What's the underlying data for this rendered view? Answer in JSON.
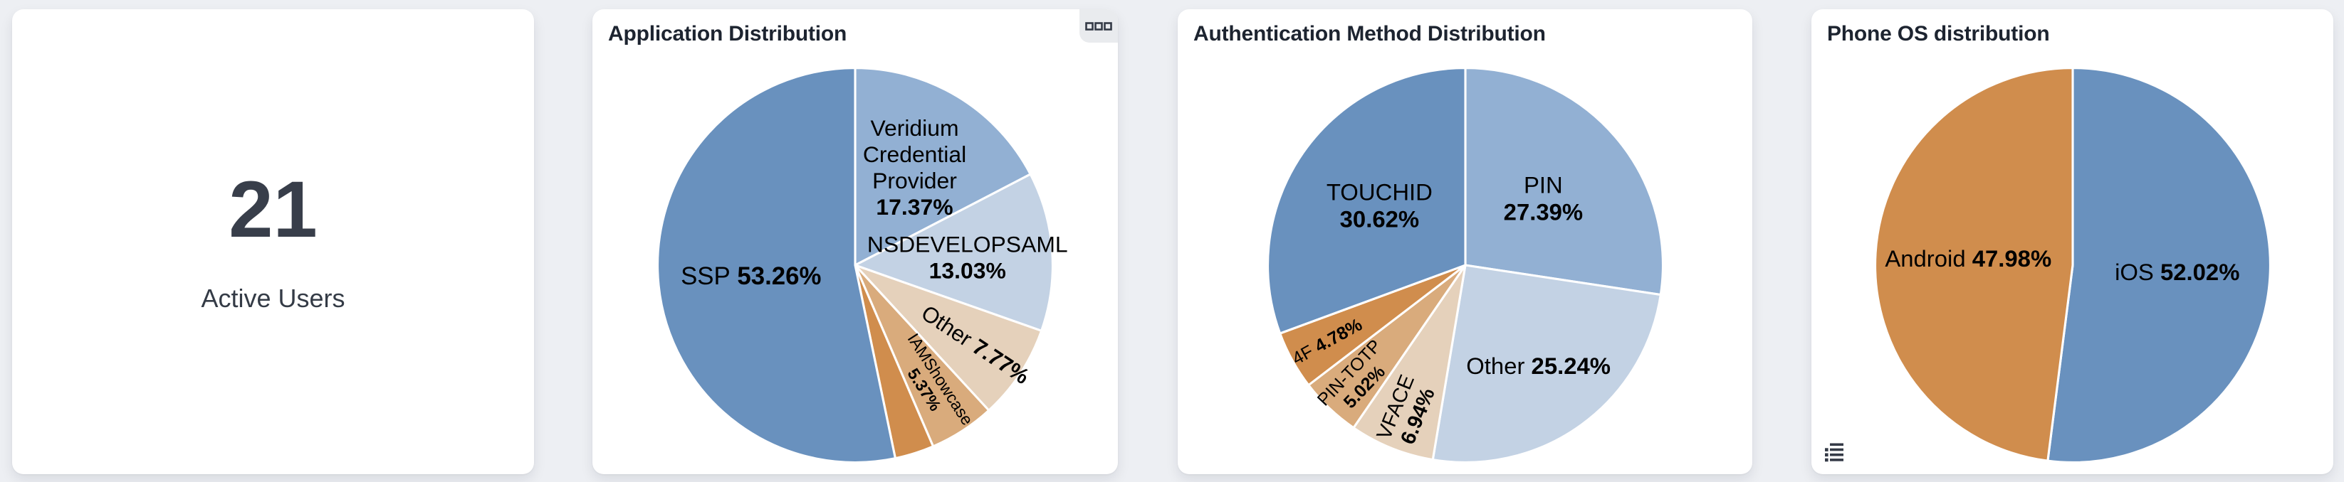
{
  "page": {
    "background_color": "#edeff3",
    "card_color": "#ffffff",
    "title_color": "#1d2430"
  },
  "kpi": {
    "value": "21",
    "label": "Active Users"
  },
  "icons": {
    "card_menu": {
      "name": "grid-squares-icon",
      "glyph": "▫▫▫",
      "color": "#343a46"
    },
    "legend_toggle": {
      "name": "list-icon",
      "glyph": "☰",
      "color": "#343a46"
    }
  },
  "palette": {
    "blue": "#6991be",
    "light_blue": "#92b0d3",
    "pale_blue": "#c3d2e4",
    "beige": "#e5d1bb",
    "tan": "#d9ab7c",
    "orange": "#d08d4d",
    "label_text": "#000000"
  },
  "chart_data": [
    {
      "type": "pie",
      "title": "Application Distribution",
      "legend": "off",
      "start_angle_deg": 0,
      "slices": [
        {
          "label": "Veridium Credential Provider",
          "pct": "17.37%",
          "value": 17.37,
          "color": "#92b0d3"
        },
        {
          "label": "NSDEVELOPSAML",
          "pct": "13.03%",
          "value": 13.03,
          "color": "#c3d2e4"
        },
        {
          "label": "Other",
          "pct": "7.77%",
          "value": 7.77,
          "color": "#e5d1bb"
        },
        {
          "label": "IAMShowcase",
          "pct": "5.37%",
          "value": 5.37,
          "color": "#d9ab7c"
        },
        {
          "label": "",
          "pct": "",
          "value": 3.2,
          "color": "#d08d4d"
        },
        {
          "label": "SSP",
          "pct": "53.26%",
          "value": 53.26,
          "color": "#6991be"
        }
      ]
    },
    {
      "type": "pie",
      "title": "Authentication Method Distribution",
      "legend": "off",
      "start_angle_deg": 0,
      "slices": [
        {
          "label": "PIN",
          "pct": "27.39%",
          "value": 27.39,
          "color": "#92b0d3"
        },
        {
          "label": "Other",
          "pct": "25.24%",
          "value": 25.24,
          "color": "#c3d2e4"
        },
        {
          "label": "VFACE",
          "pct": "6.94%",
          "value": 6.94,
          "color": "#e5d1bb"
        },
        {
          "label": "PIN-TOTP",
          "pct": "5.02%",
          "value": 5.02,
          "color": "#d9ab7c"
        },
        {
          "label": "4F",
          "pct": "4.78%",
          "value": 4.78,
          "color": "#d08d4d"
        },
        {
          "label": "TOUCHID",
          "pct": "30.62%",
          "value": 30.62,
          "color": "#6991be"
        }
      ]
    },
    {
      "type": "pie",
      "title": "Phone OS distribution",
      "legend": "off",
      "start_angle_deg": 0,
      "slices": [
        {
          "label": "iOS",
          "pct": "52.02%",
          "value": 52.02,
          "color": "#6991be"
        },
        {
          "label": "Android",
          "pct": "47.98%",
          "value": 47.98,
          "color": "#d08d4d"
        }
      ]
    }
  ]
}
